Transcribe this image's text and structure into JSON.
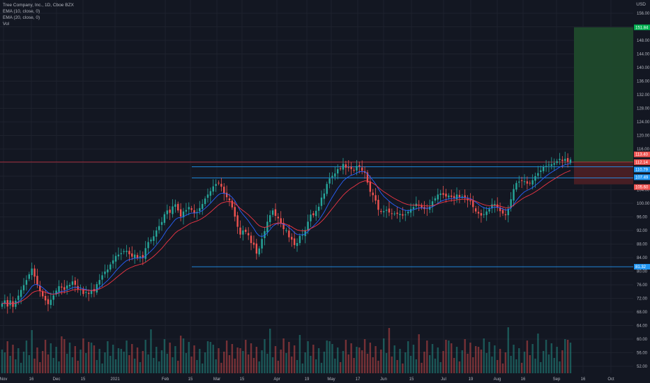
{
  "legend": {
    "symbol": "Tree Company, Inc., 1D, Cboe BZX",
    "ema_fast": "EMA (10, close, 0)",
    "ema_slow": "EMA (20, close, 0)",
    "volume": "Vol"
  },
  "currency": "USD",
  "colors": {
    "background": "#131722",
    "grid": "#1e222d",
    "up": "#26a69a",
    "down": "#ef5350",
    "ema_fast": "#2962ff",
    "ema_slow": "#f23645",
    "level_line": "#2196f3",
    "target_zone": "#1f4a2c",
    "stop_zone": "#4a1f25",
    "tag_blue": "#2196f3",
    "tag_green": "#00b050",
    "tag_red": "#ef5350"
  },
  "chart_data": {
    "type": "candlestick",
    "y_axis": {
      "ticks": [
        "52.00",
        "56.00",
        "60.00",
        "64.00",
        "68.00",
        "72.00",
        "76.00",
        "80.00",
        "84.00",
        "88.00",
        "92.00",
        "96.00",
        "100.00",
        "104.00",
        "108.00",
        "112.00",
        "116.00",
        "120.00",
        "124.00",
        "128.00",
        "132.00",
        "136.00",
        "140.00",
        "144.00",
        "148.00",
        "152.00",
        "156.00"
      ],
      "range": [
        50,
        158
      ]
    },
    "x_axis": {
      "labels": [
        "Nov",
        "16",
        "Dec",
        "15",
        "2021",
        "Feb",
        "15",
        "Mar",
        "15",
        "Apr",
        "19",
        "May",
        "17",
        "Jun",
        "15",
        "Jul",
        "19",
        "Aug",
        "16",
        "Sep",
        "16",
        "Oct"
      ]
    },
    "series": {
      "close_approx": [
        70.5,
        71.4,
        69.6,
        71.4,
        69.5,
        71.3,
        72.8,
        74.5,
        75.9,
        77.4,
        79.1,
        80.8,
        78.4,
        76.1,
        74.2,
        72.6,
        71.4,
        70.3,
        71.6,
        72.9,
        74.3,
        75.6,
        75.2,
        74.5,
        75.8,
        76.0,
        77.0,
        76.0,
        74.7,
        74.7,
        73.3,
        73.9,
        73.3,
        74.5,
        74.1,
        76.2,
        77.4,
        78.8,
        79.9,
        80.5,
        82.0,
        83.2,
        84.5,
        84.9,
        85.3,
        85.9,
        86.0,
        85.0,
        84.3,
        84.9,
        83.9,
        84.4,
        83.9,
        86.8,
        88.6,
        89.3,
        90.3,
        92.0,
        93.3,
        94.5,
        96.8,
        97.9,
        97.2,
        99.1,
        99.7,
        97.9,
        96.1,
        97.6,
        98.0,
        98.9,
        98.1,
        97.2,
        97.4,
        98.6,
        99.8,
        101.4,
        102.6,
        103.6,
        105.0,
        105.7,
        106.0,
        104.9,
        102.9,
        101.8,
        100.9,
        98.8,
        96.1,
        93.1,
        90.8,
        92.0,
        91.6,
        90.6,
        88.3,
        87.8,
        85.2,
        86.7,
        89.5,
        91.8,
        94.6,
        96.5,
        97.9,
        96.3,
        95.6,
        94.0,
        92.4,
        92.1,
        90.0,
        89.3,
        87.7,
        88.3,
        90.4,
        90.7,
        92.1,
        94.6,
        96.7,
        96.5,
        97.8,
        99.0,
        101.7,
        102.9,
        105.7,
        107.3,
        108.1,
        108.8,
        110.1,
        110.3,
        111.6,
        110.5,
        110.4,
        110.1,
        109.7,
        111.0,
        110.9,
        109.6,
        109.0,
        106.1,
        103.4,
        102.4,
        100.8,
        98.1,
        97.5,
        97.7,
        98.1,
        97.3,
        97.0,
        97.0,
        96.9,
        96.9,
        96.4,
        96.7,
        97.5,
        98.3,
        98.9,
        99.9,
        99.5,
        98.8,
        98.3,
        98.4,
        99.0,
        100.6,
        101.5,
        102.6,
        102.9,
        102.5,
        102.0,
        102.3,
        101.9,
        101.6,
        102.6,
        101.8,
        102.0,
        101.6,
        100.9,
        100.6,
        98.9,
        97.6,
        97.0,
        96.4,
        96.8,
        97.6,
        98.3,
        99.7,
        99.8,
        98.7,
        97.7,
        97.0,
        96.5,
        98.4,
        101.2,
        104.2,
        106.0,
        106.4,
        106.6,
        106.5,
        105.8,
        105.9,
        106.8,
        108.0,
        108.9,
        109.7,
        110.7,
        111.0,
        111.4,
        111.5,
        111.8,
        112.4,
        113.1,
        112.5,
        113.1,
        112.3,
        112.9
      ]
    },
    "price_tags": [
      {
        "label": "151.84",
        "color": "tag_green"
      },
      {
        "label": "113.40",
        "color": "tag_red"
      },
      {
        "label": "112.14",
        "color": "tag_red"
      },
      {
        "label": "110.79",
        "color": "tag_blue"
      },
      {
        "label": "107.49",
        "color": "tag_blue"
      },
      {
        "label": "105.60",
        "color": "tag_red"
      },
      {
        "label": "81.32",
        "color": "tag_blue"
      }
    ],
    "horizontal_levels": [
      81.32,
      107.49,
      110.79
    ],
    "position": {
      "entry": 112.14,
      "target": 151.84,
      "stop": 105.6
    },
    "grid": true,
    "legend_position": "top-left"
  }
}
